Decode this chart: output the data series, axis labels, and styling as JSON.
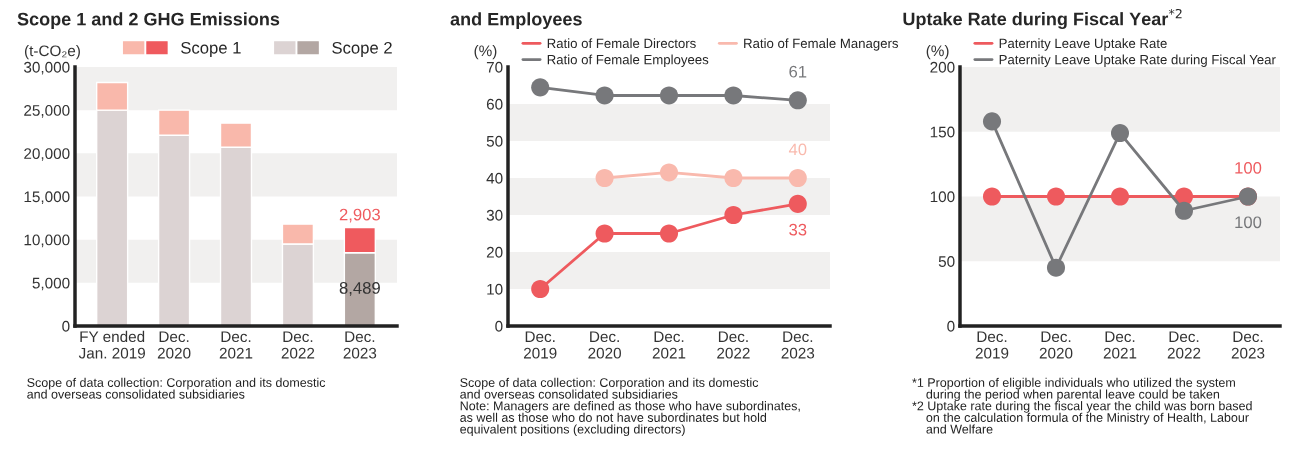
{
  "chart_data": [
    {
      "type": "bar",
      "stacked": true,
      "title": "Scope 1 and 2 GHG Emissions",
      "ylabel": "(t-CO₂e)",
      "categories": [
        "FY ended\nJan. 2019",
        "Dec.\n2020",
        "Dec.\n2021",
        "Dec.\n2022",
        "Dec.\n2023"
      ],
      "series": [
        {
          "name": "Scope 2",
          "color": "#dcd3d3",
          "colors": [
            "#dcd3d3",
            "#dcd3d3",
            "#dcd3d3",
            "#dcd3d3",
            "#b3a7a3"
          ],
          "values": [
            25000,
            22100,
            20700,
            9500,
            8489
          ],
          "value_labels": [
            null,
            null,
            null,
            null,
            "8,489"
          ]
        },
        {
          "name": "Scope 1",
          "color": "#f9b8ab",
          "colors": [
            "#f9b8ab",
            "#f9b8ab",
            "#f9b8ab",
            "#f9b8ab",
            "#ef5a5e"
          ],
          "values": [
            3200,
            2900,
            2800,
            2300,
            2903
          ],
          "value_labels": [
            null,
            null,
            null,
            null,
            "2,903"
          ]
        }
      ],
      "ylim": [
        0,
        30000
      ],
      "yticks": [
        {
          "value": 0,
          "label": "0"
        },
        {
          "value": 5000,
          "label": "5,000"
        },
        {
          "value": 10000,
          "label": "10,000"
        },
        {
          "value": 15000,
          "label": "15,000"
        },
        {
          "value": 20000,
          "label": "20,000"
        },
        {
          "value": 25000,
          "label": "25,000"
        },
        {
          "value": 30000,
          "label": "30,000"
        }
      ],
      "bands": [
        {
          "axis": "y",
          "from": 5000,
          "to": 10000,
          "color": "#f1f0ef"
        },
        {
          "axis": "y",
          "from": 15000,
          "to": 20000,
          "color": "#f1f0ef"
        },
        {
          "axis": "y",
          "from": 25000,
          "to": 30000,
          "color": "#f1f0ef"
        }
      ],
      "legend": "top",
      "annotations": [
        "Scope of data collection: Corporation and its domestic\nand overseas consolidated subsidiaries"
      ]
    },
    {
      "type": "line",
      "title": "and Employees",
      "ylabel": "(%)",
      "categories": [
        "Dec.\n2019",
        "Dec.\n2020",
        "Dec.\n2021",
        "Dec.\n2022",
        "Dec.\n2023"
      ],
      "marker": "circle",
      "series": [
        {
          "name": "Ratio of Female Directors",
          "color": "#ee5a5e",
          "values": [
            10,
            25,
            25,
            30,
            33
          ],
          "value_labels": [
            null,
            null,
            null,
            null,
            "33"
          ]
        },
        {
          "name": "Ratio of Female Managers",
          "color": "#f9b9ad",
          "values": [
            null,
            40,
            41.5,
            40,
            40
          ],
          "value_labels": [
            null,
            null,
            null,
            null,
            "40"
          ]
        },
        {
          "name": "Ratio of Female Employees",
          "color": "#77787b",
          "values": [
            64.5,
            62.3,
            62.3,
            62.3,
            61
          ],
          "value_labels": [
            null,
            null,
            null,
            null,
            "61"
          ]
        }
      ],
      "ylim": [
        0,
        70
      ],
      "yticks": [
        0,
        10,
        20,
        30,
        40,
        50,
        60,
        70
      ],
      "bands": [
        {
          "axis": "y",
          "from": 10,
          "to": 20,
          "color": "#f1f0ef"
        },
        {
          "axis": "y",
          "from": 30,
          "to": 40,
          "color": "#f1f0ef"
        },
        {
          "axis": "y",
          "from": 50,
          "to": 60,
          "color": "#f1f0ef"
        }
      ],
      "legend": "top",
      "annotations": [
        "Scope of data collection: Corporation and its domestic\nand overseas consolidated subsidiaries\nNote: Managers are defined as those who have subordinates,\nas well as those who do not have subordinates but hold\nequivalent positions (excluding directors)"
      ]
    },
    {
      "type": "line",
      "title": "Uptake Rate during Fiscal Year$^{*2}$",
      "ylabel": "(%)",
      "categories": [
        "Dec.\n2019",
        "Dec.\n2020",
        "Dec.\n2021",
        "Dec.\n2022",
        "Dec.\n2023"
      ],
      "marker": "circle",
      "series": [
        {
          "name": "Paternity Leave Uptake Rate",
          "color": "#ee5a5e",
          "values": [
            100,
            100,
            100,
            100,
            100
          ],
          "value_labels": [
            null,
            null,
            null,
            null,
            "100"
          ]
        },
        {
          "name": "Paternity Leave Uptake Rate during Fiscal Year",
          "color": "#77787b",
          "values": [
            158,
            45,
            149,
            89,
            100
          ],
          "value_labels": [
            null,
            null,
            null,
            null,
            "100"
          ]
        }
      ],
      "ylim": [
        0,
        200
      ],
      "yticks": [
        0,
        50,
        100,
        150,
        200
      ],
      "bands": [
        {
          "axis": "y",
          "from": 50,
          "to": 100,
          "color": "#f1f0ef"
        },
        {
          "axis": "y",
          "from": 150,
          "to": 200,
          "color": "#f1f0ef"
        }
      ],
      "legend": "top",
      "annotations": [
        "*1 Proportion of eligible individuals who utilized the system\n    during the period when parental leave could be taken\n*2 Uptake rate during the fiscal year the child was born based\n    on the calculation formula of the Ministry of Health, Labour\n    and Welfare"
      ]
    }
  ]
}
